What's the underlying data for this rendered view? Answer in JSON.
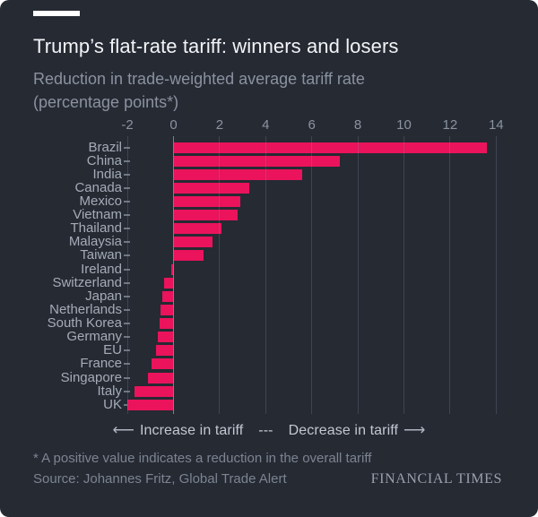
{
  "header": {
    "title": "Trump’s flat-rate tariff: winners and losers",
    "subtitle": "Reduction in trade-weighted average tariff rate (percentage points*)"
  },
  "chart_data": {
    "type": "bar",
    "orientation": "horizontal",
    "title": "Trump’s flat-rate tariff: winners and losers",
    "subtitle": "Reduction in trade-weighted average tariff rate (percentage points*)",
    "categories": [
      "Brazil",
      "China",
      "India",
      "Canada",
      "Mexico",
      "Vietnam",
      "Thailand",
      "Malaysia",
      "Taiwan",
      "Ireland",
      "Switzerland",
      "Japan",
      "Netherlands",
      "South Korea",
      "Germany",
      "EU",
      "France",
      "Singapore",
      "Italy",
      "UK"
    ],
    "values": [
      13.6,
      7.2,
      5.6,
      3.3,
      2.9,
      2.8,
      2.1,
      1.7,
      1.3,
      -0.1,
      -0.4,
      -0.5,
      -0.55,
      -0.6,
      -0.7,
      -0.75,
      -0.95,
      -1.1,
      -1.7,
      -2.0
    ],
    "xlim": [
      -2,
      14
    ],
    "x_ticks": [
      -2,
      0,
      2,
      4,
      6,
      8,
      10,
      12,
      14
    ],
    "grid": true,
    "legend_position": "none",
    "bar_color": "#ea135c",
    "background_color": "#262a33"
  },
  "annotation": {
    "left_arrow": "⟵",
    "increase_label": "Increase in tariff",
    "separator": "---",
    "decrease_label": "Decrease in tariff",
    "right_arrow": "⟶"
  },
  "footer": {
    "footnote": "* A positive value indicates a reduction in the overall tariff",
    "source": "Source: Johannes Fritz, Global Trade Alert",
    "brand": "FINANCIAL TIMES"
  },
  "colors": {
    "background": "#262a33",
    "bar": "#ea135c",
    "title_text": "#f2f4f7",
    "subtitle_text": "#8a92a0",
    "axis_label_text": "#8b93a1",
    "category_label_text": "#a5acb7",
    "gridline": "rgba(139,149,166,0.25)",
    "zero_axis_line": "#79818f"
  }
}
